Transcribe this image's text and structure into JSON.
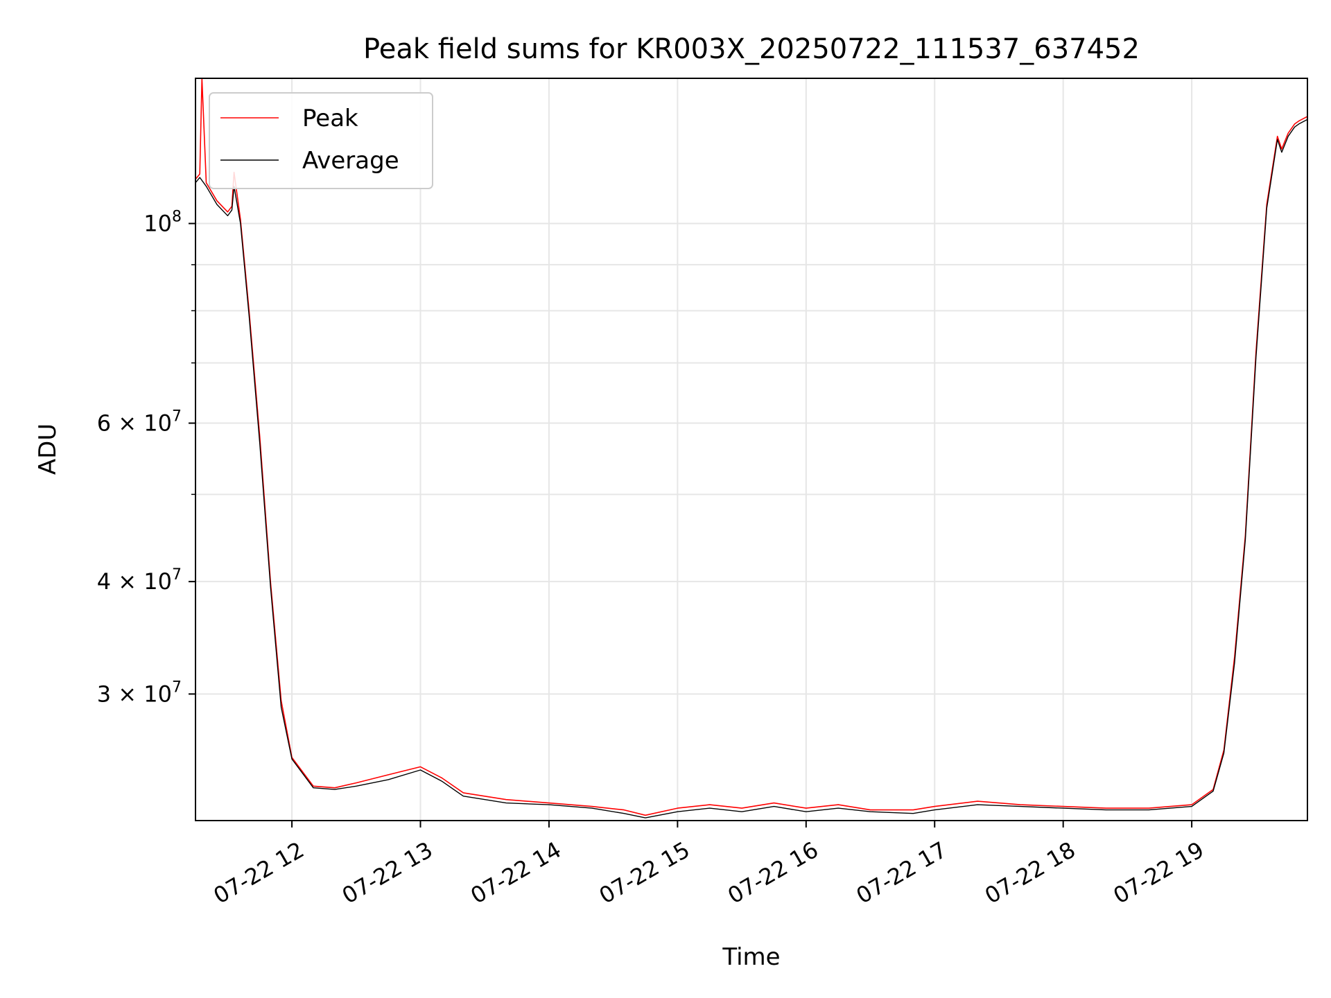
{
  "chart_data": {
    "type": "line",
    "title": "Peak field sums for KR003X_20250722_111537_637452",
    "xlabel": "Time",
    "ylabel": "ADU",
    "xscale": "time",
    "yscale": "log",
    "xlim": [
      "2025-07-22T11:15",
      "2025-07-22T19:54"
    ],
    "ylim": [
      21700000,
      145000000
    ],
    "grid": true,
    "legend": "top-left",
    "x_ticks": [
      "07-22 12",
      "07-22 13",
      "07-22 14",
      "07-22 15",
      "07-22 16",
      "07-22 17",
      "07-22 18",
      "07-22 19"
    ],
    "x_tick_times": [
      "2025-07-22T12:00",
      "2025-07-22T13:00",
      "2025-07-22T14:00",
      "2025-07-22T15:00",
      "2025-07-22T16:00",
      "2025-07-22T17:00",
      "2025-07-22T18:00",
      "2025-07-22T19:00"
    ],
    "y_major_ticks": [
      {
        "value": 100000000,
        "mant": "10",
        "exp": "8"
      },
      {
        "value": 60000000,
        "mant": "6 × 10",
        "exp": "7"
      },
      {
        "value": 40000000,
        "mant": "4 × 10",
        "exp": "7"
      },
      {
        "value": 30000000,
        "mant": "3 × 10",
        "exp": "7"
      }
    ],
    "y_minor_grid": [
      50000000,
      70000000,
      80000000,
      90000000
    ],
    "series": [
      {
        "name": "Peak",
        "color": "#ff0000",
        "x": [
          "2025-07-22T11:15",
          "2025-07-22T11:17",
          "2025-07-22T11:18",
          "2025-07-22T11:20",
          "2025-07-22T11:25",
          "2025-07-22T11:30",
          "2025-07-22T11:32",
          "2025-07-22T11:33",
          "2025-07-22T11:36",
          "2025-07-22T11:40",
          "2025-07-22T11:45",
          "2025-07-22T11:50",
          "2025-07-22T11:55",
          "2025-07-22T12:00",
          "2025-07-22T12:10",
          "2025-07-22T12:20",
          "2025-07-22T12:30",
          "2025-07-22T12:45",
          "2025-07-22T13:00",
          "2025-07-22T13:10",
          "2025-07-22T13:20",
          "2025-07-22T13:40",
          "2025-07-22T14:00",
          "2025-07-22T14:20",
          "2025-07-22T14:35",
          "2025-07-22T14:45",
          "2025-07-22T15:00",
          "2025-07-22T15:15",
          "2025-07-22T15:30",
          "2025-07-22T15:45",
          "2025-07-22T16:00",
          "2025-07-22T16:15",
          "2025-07-22T16:30",
          "2025-07-22T16:50",
          "2025-07-22T17:00",
          "2025-07-22T17:20",
          "2025-07-22T17:40",
          "2025-07-22T18:00",
          "2025-07-22T18:20",
          "2025-07-22T18:40",
          "2025-07-22T19:00",
          "2025-07-22T19:10",
          "2025-07-22T19:15",
          "2025-07-22T19:20",
          "2025-07-22T19:25",
          "2025-07-22T19:30",
          "2025-07-22T19:35",
          "2025-07-22T19:40",
          "2025-07-22T19:42",
          "2025-07-22T19:45",
          "2025-07-22T19:48",
          "2025-07-22T19:50",
          "2025-07-22T19:54"
        ],
        "y": [
          112000000,
          113500000,
          145000000,
          111000000,
          106000000,
          103000000,
          104500000,
          114000000,
          101000000,
          80000000,
          58000000,
          40000000,
          29500000,
          25500000,
          23700000,
          23600000,
          23900000,
          24400000,
          24900000,
          24200000,
          23300000,
          22900000,
          22700000,
          22500000,
          22300000,
          22000000,
          22400000,
          22600000,
          22400000,
          22700000,
          22400000,
          22600000,
          22300000,
          22300000,
          22500000,
          22800000,
          22600000,
          22500000,
          22400000,
          22400000,
          22600000,
          23500000,
          26000000,
          33000000,
          45000000,
          72000000,
          105000000,
          125000000,
          121000000,
          126000000,
          129000000,
          130000000,
          131500000
        ]
      },
      {
        "name": "Average",
        "color": "#000000",
        "x": [
          "2025-07-22T11:15",
          "2025-07-22T11:17",
          "2025-07-22T11:20",
          "2025-07-22T11:25",
          "2025-07-22T11:30",
          "2025-07-22T11:32",
          "2025-07-22T11:33",
          "2025-07-22T11:36",
          "2025-07-22T11:40",
          "2025-07-22T11:45",
          "2025-07-22T11:50",
          "2025-07-22T11:55",
          "2025-07-22T12:00",
          "2025-07-22T12:10",
          "2025-07-22T12:20",
          "2025-07-22T12:30",
          "2025-07-22T12:45",
          "2025-07-22T13:00",
          "2025-07-22T13:10",
          "2025-07-22T13:20",
          "2025-07-22T13:40",
          "2025-07-22T14:00",
          "2025-07-22T14:20",
          "2025-07-22T14:35",
          "2025-07-22T14:45",
          "2025-07-22T15:00",
          "2025-07-22T15:15",
          "2025-07-22T15:30",
          "2025-07-22T15:45",
          "2025-07-22T16:00",
          "2025-07-22T16:15",
          "2025-07-22T16:30",
          "2025-07-22T16:50",
          "2025-07-22T17:00",
          "2025-07-22T17:20",
          "2025-07-22T17:40",
          "2025-07-22T18:00",
          "2025-07-22T18:20",
          "2025-07-22T18:40",
          "2025-07-22T19:00",
          "2025-07-22T19:10",
          "2025-07-22T19:15",
          "2025-07-22T19:20",
          "2025-07-22T19:25",
          "2025-07-22T19:30",
          "2025-07-22T19:35",
          "2025-07-22T19:40",
          "2025-07-22T19:42",
          "2025-07-22T19:45",
          "2025-07-22T19:48",
          "2025-07-22T19:50",
          "2025-07-22T19:54"
        ],
        "y": [
          111000000,
          112500000,
          110000000,
          105000000,
          102000000,
          103500000,
          110000000,
          100000000,
          79000000,
          57000000,
          39500000,
          29000000,
          25400000,
          23600000,
          23500000,
          23700000,
          24100000,
          24700000,
          24000000,
          23100000,
          22700000,
          22600000,
          22400000,
          22100000,
          21850000,
          22200000,
          22400000,
          22200000,
          22500000,
          22200000,
          22400000,
          22200000,
          22100000,
          22300000,
          22600000,
          22500000,
          22400000,
          22300000,
          22300000,
          22500000,
          23400000,
          25800000,
          32500000,
          44500000,
          71000000,
          104000000,
          124000000,
          120000000,
          125000000,
          128000000,
          129000000,
          130500000
        ]
      }
    ]
  }
}
